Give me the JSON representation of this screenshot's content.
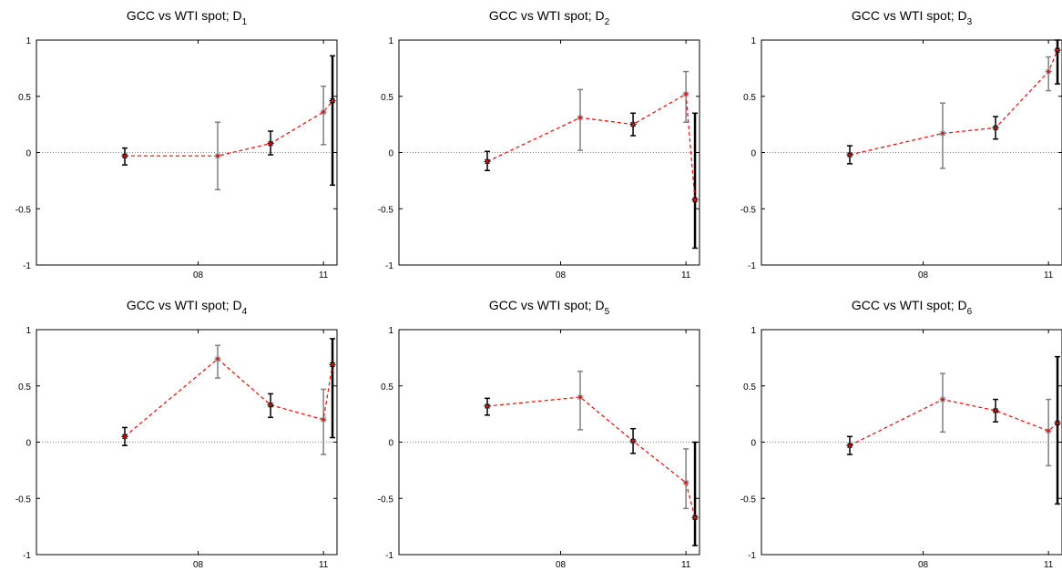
{
  "colors": {
    "line": "#ff0000",
    "marker": "#ff0000",
    "err_black": "#000000",
    "err_gray": "#808080",
    "zero_line": "#808080",
    "axes": "#000000"
  },
  "chart_data": [
    {
      "type": "line",
      "title": "GCC vs WTI spot;  D",
      "title_subscript": "1",
      "ylim": [
        -1,
        1
      ],
      "yticks": [
        "-1",
        "-0.5",
        "0",
        "0.5",
        "1"
      ],
      "xticks": [
        "08",
        "11"
      ],
      "points": [
        {
          "y": -0.03,
          "lo": -0.11,
          "hi": 0.04,
          "err": "black"
        },
        {
          "y": -0.03,
          "lo": -0.33,
          "hi": 0.27,
          "err": "gray"
        },
        {
          "y": 0.08,
          "lo": -0.02,
          "hi": 0.19,
          "err": "black"
        },
        {
          "y": 0.36,
          "lo": 0.07,
          "hi": 0.59,
          "err": "gray"
        },
        {
          "y": 0.46,
          "lo": -0.29,
          "hi": 0.86,
          "err": "black_thick"
        }
      ]
    },
    {
      "type": "line",
      "title": "GCC vs WTI spot;  D",
      "title_subscript": "2",
      "ylim": [
        -1,
        1
      ],
      "yticks": [
        "-1",
        "-0.5",
        "0",
        "0.5",
        "1"
      ],
      "xticks": [
        "08",
        "11"
      ],
      "points": [
        {
          "y": -0.08,
          "lo": -0.16,
          "hi": 0.01,
          "err": "black"
        },
        {
          "y": 0.31,
          "lo": 0.02,
          "hi": 0.56,
          "err": "gray"
        },
        {
          "y": 0.25,
          "lo": 0.15,
          "hi": 0.35,
          "err": "black"
        },
        {
          "y": 0.52,
          "lo": 0.27,
          "hi": 0.72,
          "err": "gray"
        },
        {
          "y": -0.42,
          "lo": -0.85,
          "hi": 0.35,
          "err": "black_thick"
        }
      ]
    },
    {
      "type": "line",
      "title": "GCC vs WTI spot;  D",
      "title_subscript": "3",
      "ylim": [
        -1,
        1
      ],
      "yticks": [
        "-1",
        "-0.5",
        "0",
        "0.5",
        "1"
      ],
      "xticks": [
        "08",
        "11"
      ],
      "points": [
        {
          "y": -0.02,
          "lo": -0.1,
          "hi": 0.06,
          "err": "black"
        },
        {
          "y": 0.17,
          "lo": -0.14,
          "hi": 0.44,
          "err": "gray"
        },
        {
          "y": 0.22,
          "lo": 0.12,
          "hi": 0.32,
          "err": "black"
        },
        {
          "y": 0.72,
          "lo": 0.55,
          "hi": 0.85,
          "err": "gray"
        },
        {
          "y": 0.91,
          "lo": 0.61,
          "hi": 1.0,
          "err": "black_thick"
        }
      ]
    },
    {
      "type": "line",
      "title": "GCC vs WTI spot;  D",
      "title_subscript": "4",
      "ylim": [
        -1,
        1
      ],
      "yticks": [
        "-1",
        "-0.5",
        "0",
        "0.5",
        "1"
      ],
      "xticks": [
        "08",
        "11"
      ],
      "points": [
        {
          "y": 0.05,
          "lo": -0.03,
          "hi": 0.13,
          "err": "black"
        },
        {
          "y": 0.74,
          "lo": 0.57,
          "hi": 0.86,
          "err": "gray"
        },
        {
          "y": 0.33,
          "lo": 0.22,
          "hi": 0.43,
          "err": "black"
        },
        {
          "y": 0.2,
          "lo": -0.11,
          "hi": 0.47,
          "err": "gray"
        },
        {
          "y": 0.69,
          "lo": 0.04,
          "hi": 0.92,
          "err": "black_thick"
        }
      ]
    },
    {
      "type": "line",
      "title": "GCC vs WTI spot;  D",
      "title_subscript": "5",
      "ylim": [
        -1,
        1
      ],
      "yticks": [
        "-1",
        "-0.5",
        "0",
        "0.5",
        "1"
      ],
      "xticks": [
        "08",
        "11"
      ],
      "points": [
        {
          "y": 0.32,
          "lo": 0.24,
          "hi": 0.39,
          "err": "black"
        },
        {
          "y": 0.4,
          "lo": 0.11,
          "hi": 0.63,
          "err": "gray"
        },
        {
          "y": 0.01,
          "lo": -0.1,
          "hi": 0.12,
          "err": "black"
        },
        {
          "y": -0.36,
          "lo": -0.59,
          "hi": -0.06,
          "err": "gray"
        },
        {
          "y": -0.67,
          "lo": -0.92,
          "hi": 0.0,
          "err": "black_thick"
        }
      ]
    },
    {
      "type": "line",
      "title": "GCC vs WTI spot;  D",
      "title_subscript": "6",
      "ylim": [
        -1,
        1
      ],
      "yticks": [
        "-1",
        "-0.5",
        "0",
        "0.5",
        "1"
      ],
      "xticks": [
        "08",
        "11"
      ],
      "points": [
        {
          "y": -0.03,
          "lo": -0.11,
          "hi": 0.05,
          "err": "black"
        },
        {
          "y": 0.38,
          "lo": 0.09,
          "hi": 0.61,
          "err": "gray"
        },
        {
          "y": 0.28,
          "lo": 0.18,
          "hi": 0.38,
          "err": "black"
        },
        {
          "y": 0.1,
          "lo": -0.21,
          "hi": 0.38,
          "err": "gray"
        },
        {
          "y": 0.17,
          "lo": -0.55,
          "hi": 0.76,
          "err": "black_thick"
        }
      ]
    }
  ]
}
